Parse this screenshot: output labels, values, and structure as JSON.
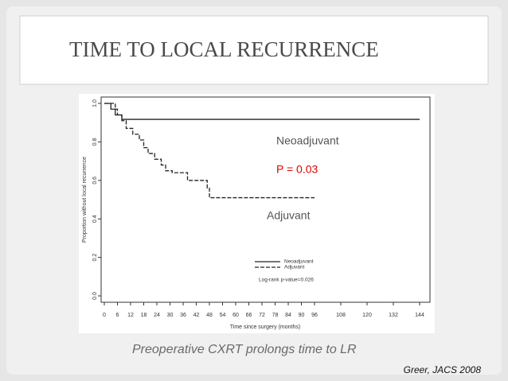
{
  "slide": {
    "title": "TIME TO LOCAL RECURRENCE",
    "caption": "Preoperative CXRT prolongs time to LR",
    "citation": "Greer, JACS 2008"
  },
  "chart_data": {
    "type": "step-line",
    "xlabel": "Time since surgery (months)",
    "ylabel": "Proportion without local recurrence",
    "xlim": [
      0,
      144
    ],
    "ylim": [
      0,
      1
    ],
    "xticks": [
      0,
      6,
      12,
      18,
      24,
      30,
      36,
      42,
      48,
      54,
      60,
      66,
      72,
      78,
      84,
      90,
      96,
      108,
      120,
      132,
      144
    ],
    "yticks": [
      {
        "value": 0,
        "label": "0.0"
      },
      0.2,
      0.4,
      0.6,
      0.8,
      {
        "value": 1,
        "label": "1.0"
      }
    ],
    "legend_note": "Log-rank p-value=0.026",
    "series": [
      {
        "name": "Neoadjuvant",
        "color": "#222222",
        "dashed": false,
        "x": [
          0,
          3,
          3,
          5,
          5,
          8,
          8,
          144
        ],
        "values": [
          1,
          1,
          0.97,
          0.97,
          0.94,
          0.94,
          0.917,
          0.917
        ]
      },
      {
        "name": "Adjuvant",
        "color": "#222222",
        "dashed": true,
        "x": [
          0,
          5,
          5,
          6,
          6,
          8,
          8,
          10,
          10,
          13,
          13,
          16,
          16,
          18,
          18,
          20,
          20,
          23,
          23,
          26,
          26,
          28,
          28,
          31,
          31,
          38,
          38,
          47,
          47,
          48,
          48,
          96
        ],
        "values": [
          1,
          1,
          0.97,
          0.97,
          0.94,
          0.94,
          0.91,
          0.91,
          0.87,
          0.87,
          0.84,
          0.84,
          0.81,
          0.81,
          0.77,
          0.77,
          0.74,
          0.74,
          0.71,
          0.71,
          0.68,
          0.68,
          0.65,
          0.65,
          0.64,
          0.64,
          0.6,
          0.6,
          0.56,
          0.56,
          0.51,
          0.51
        ]
      }
    ],
    "annotations": [
      {
        "text": "Neoadjuvant",
        "color": "#555555"
      },
      {
        "text": "P = 0.03",
        "color": "#e00000"
      },
      {
        "text": "Adjuvant",
        "color": "#555555"
      }
    ]
  }
}
